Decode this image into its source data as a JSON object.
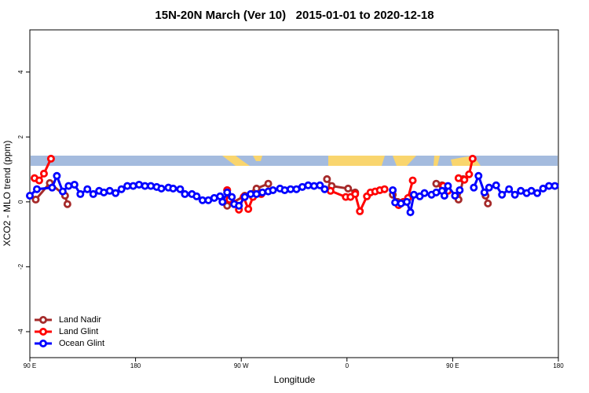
{
  "chart_data": {
    "type": "line",
    "title": "15N-20N March (Ver 10)   2015-01-01 to 2020-12-18",
    "x_label": "Longitude",
    "y_label": "XCO2 - MLO trend (ppm)",
    "xlim": [
      90,
      540
    ],
    "ylim": [
      -4.8,
      5.3
    ],
    "xticks": [
      {
        "value": 90,
        "label": "90 E"
      },
      180,
      {
        "value": 270,
        "label": "90 W"
      },
      {
        "value": 360,
        "label": "0"
      },
      {
        "value": 450,
        "label": "90 E"
      },
      {
        "value": 540,
        "label": "180"
      }
    ],
    "yticks": [
      -4,
      -2,
      0,
      2,
      4
    ],
    "legend": "bottom-left",
    "series": [
      {
        "name": "Land Nadir",
        "color": "#a52a2a",
        "x": [
          95,
          107,
          120,
          122,
          null,
          258,
          258,
          273,
          283,
          293,
          null,
          343,
          347,
          361,
          367,
          null,
          399,
          403,
          null,
          436,
          441,
          null,
          455,
          459,
          null,
          478,
          480
        ],
        "values": [
          0.07,
          0.58,
          0.19,
          -0.07,
          null,
          0.36,
          -0.12,
          0.19,
          0.41,
          0.56,
          null,
          0.7,
          0.49,
          0.41,
          0.29,
          null,
          0.22,
          0,
          null,
          0.56,
          0.51,
          null,
          0.07,
          0.7,
          null,
          0.19,
          -0.05
        ]
      },
      {
        "name": "Land Glint",
        "color": "#ff0000",
        "x": [
          94,
          98,
          102,
          108,
          null,
          258,
          260,
          264,
          268,
          272,
          276,
          280,
          287,
          null,
          346,
          359,
          363,
          367,
          371,
          377,
          380,
          384,
          388,
          392,
          null,
          404,
          408,
          412,
          416,
          null,
          442,
          446,
          null,
          455,
          460,
          464,
          467
        ],
        "values": [
          0.73,
          0.66,
          0.87,
          1.33,
          null,
          0.36,
          0.07,
          -0.05,
          -0.24,
          0.15,
          -0.22,
          0.15,
          0.24,
          null,
          0.34,
          0.15,
          0.15,
          0.24,
          -0.29,
          0.17,
          0.29,
          0.32,
          0.36,
          0.39,
          null,
          -0.1,
          0,
          0.12,
          0.66,
          null,
          0.49,
          0.34,
          null,
          0.73,
          0.68,
          0.85,
          1.33
        ]
      },
      {
        "name": "Ocean Glint",
        "color": "#0000ff",
        "x": [
          90,
          96,
          109,
          113,
          118,
          123,
          128,
          133,
          139,
          144,
          149,
          153,
          158,
          163,
          168,
          173,
          178,
          183,
          188,
          193,
          198,
          202,
          208,
          212,
          218,
          222,
          228,
          232,
          237,
          242,
          247,
          252,
          254,
          258,
          262,
          264,
          268,
          273,
          278,
          283,
          288,
          293,
          297,
          303,
          307,
          312,
          317,
          322,
          327,
          332,
          337,
          341,
          null,
          399,
          401,
          406,
          411,
          414,
          417,
          422,
          426,
          432,
          436,
          441,
          443,
          446,
          452,
          456,
          null,
          468,
          472,
          477,
          481,
          487,
          492,
          498,
          503,
          508,
          513,
          517,
          522,
          527,
          532,
          537
        ],
        "values": [
          0.19,
          0.39,
          0.44,
          0.8,
          0.32,
          0.49,
          0.53,
          0.24,
          0.39,
          0.24,
          0.34,
          0.29,
          0.34,
          0.27,
          0.39,
          0.49,
          0.49,
          0.53,
          0.49,
          0.49,
          0.46,
          0.41,
          0.44,
          0.41,
          0.39,
          0.24,
          0.24,
          0.17,
          0.05,
          0.05,
          0.12,
          0.17,
          0,
          0.29,
          0.15,
          -0.07,
          -0.12,
          0.15,
          0.24,
          0.24,
          0.29,
          0.32,
          0.36,
          0.41,
          0.36,
          0.39,
          0.39,
          0.46,
          0.51,
          0.49,
          0.51,
          0.39,
          null,
          0.36,
          -0.02,
          -0.05,
          0,
          -0.32,
          0.22,
          0.17,
          0.27,
          0.22,
          0.29,
          0.34,
          0.19,
          0.49,
          0.19,
          0.36,
          null,
          0.44,
          0.8,
          0.29,
          0.44,
          0.51,
          0.22,
          0.39,
          0.22,
          0.34,
          0.27,
          0.34,
          0.27,
          0.41,
          0.49,
          0.49
        ]
      }
    ]
  }
}
